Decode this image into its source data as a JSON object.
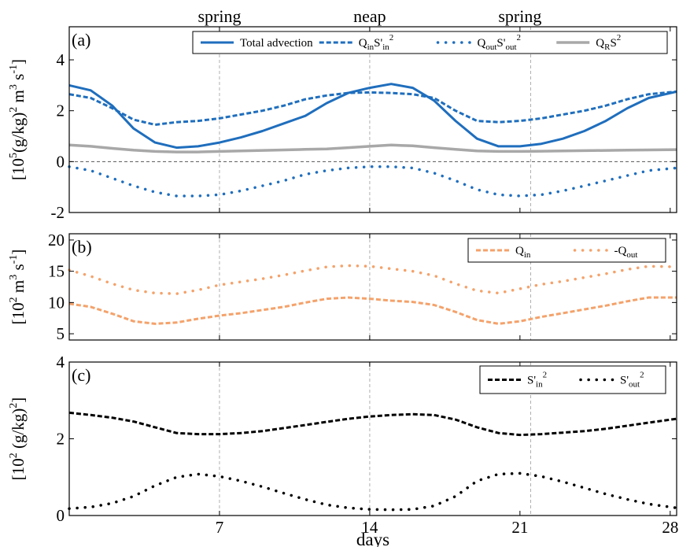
{
  "figure": {
    "phase_labels": [
      {
        "text": "spring",
        "day": 7
      },
      {
        "text": "neap",
        "day": 14
      },
      {
        "text": "spring",
        "day": 21
      }
    ],
    "xlabel": "days",
    "x_ticks": [
      7,
      14,
      21,
      28
    ],
    "x_range": [
      0,
      28.3
    ],
    "vlines_days": [
      7,
      14,
      21.5
    ]
  },
  "chart_data": [
    {
      "panel": "(a)",
      "type": "line",
      "ylabel_html": "[10<tspan dy='-9' font-size='14'>5</tspan><tspan dy='9'>(g/kg)</tspan><tspan dy='-9' font-size='14'>2</tspan><tspan dy='9'> m</tspan><tspan dy='-9' font-size='14'>3</tspan><tspan dy='9'> s</tspan><tspan dy='-9' font-size='14'>-1</tspan><tspan dy='9'>]</tspan>",
      "ylim": [
        -2,
        5.3
      ],
      "y_ticks": [
        -2,
        0,
        2,
        4
      ],
      "zero_line": true,
      "x": [
        0,
        1,
        2,
        3,
        4,
        5,
        6,
        7,
        8,
        9,
        10,
        11,
        12,
        13,
        14,
        15,
        16,
        17,
        18,
        19,
        20,
        21,
        22,
        23,
        24,
        25,
        26,
        27,
        28.3
      ],
      "series": [
        {
          "name": "Total advection",
          "color": "#1f6ebd",
          "style": "solid",
          "width": 3,
          "values": [
            3.0,
            2.8,
            2.2,
            1.3,
            0.75,
            0.55,
            0.6,
            0.75,
            0.95,
            1.2,
            1.5,
            1.8,
            2.3,
            2.7,
            2.9,
            3.05,
            2.9,
            2.4,
            1.6,
            0.9,
            0.6,
            0.6,
            0.7,
            0.9,
            1.2,
            1.6,
            2.1,
            2.5,
            2.75
          ]
        },
        {
          "name": "Q_inS'_in^2",
          "color": "#1f6ebd",
          "style": "dashed",
          "width": 3,
          "values": [
            2.65,
            2.5,
            2.1,
            1.65,
            1.45,
            1.55,
            1.6,
            1.7,
            1.85,
            2.0,
            2.2,
            2.45,
            2.6,
            2.7,
            2.72,
            2.7,
            2.65,
            2.5,
            2.0,
            1.6,
            1.55,
            1.6,
            1.7,
            1.85,
            2.0,
            2.2,
            2.45,
            2.65,
            2.75
          ]
        },
        {
          "name": "Q_outS'_out^2",
          "color": "#1f6ebd",
          "style": "dotted",
          "width": 3.5,
          "values": [
            -0.2,
            -0.35,
            -0.65,
            -0.95,
            -1.2,
            -1.35,
            -1.35,
            -1.3,
            -1.15,
            -0.95,
            -0.75,
            -0.5,
            -0.35,
            -0.25,
            -0.2,
            -0.2,
            -0.25,
            -0.45,
            -0.75,
            -1.1,
            -1.3,
            -1.35,
            -1.3,
            -1.15,
            -0.95,
            -0.75,
            -0.55,
            -0.35,
            -0.25
          ]
        },
        {
          "name": "Q_R S^2",
          "color": "#a8a8a8",
          "style": "solid",
          "width": 3.5,
          "values": [
            0.65,
            0.6,
            0.52,
            0.45,
            0.4,
            0.38,
            0.38,
            0.4,
            0.42,
            0.44,
            0.46,
            0.48,
            0.5,
            0.55,
            0.6,
            0.65,
            0.62,
            0.55,
            0.48,
            0.42,
            0.4,
            0.4,
            0.41,
            0.42,
            0.43,
            0.44,
            0.45,
            0.46,
            0.47
          ]
        }
      ],
      "legend": [
        {
          "series": 0,
          "html": "Total advection"
        },
        {
          "series": 1,
          "html": "Q<tspan font-size='11' dy='4'>in</tspan><tspan dy='-4'>S'</tspan><tspan font-size='11' dy='4'>in</tspan><tspan font-size='11' dy='-12'>2</tspan>"
        },
        {
          "series": 2,
          "html": "Q<tspan font-size='11' dy='4'>out</tspan><tspan dy='-4'>S'</tspan><tspan font-size='11' dy='4'>out</tspan><tspan font-size='11' dy='-12'>2</tspan>"
        },
        {
          "series": 3,
          "html": "Q<tspan font-size='11' dy='4'>R</tspan><tspan dy='-4'>S</tspan><tspan font-size='11' dy='-8'>2</tspan>"
        }
      ]
    },
    {
      "panel": "(b)",
      "type": "line",
      "ylabel_html": "[10<tspan dy='-9' font-size='14'>2</tspan><tspan dy='9'> m</tspan><tspan dy='-9' font-size='14'>3</tspan><tspan dy='9'> s</tspan><tspan dy='-9' font-size='14'>-1</tspan><tspan dy='9'>]</tspan>",
      "ylim": [
        4,
        21
      ],
      "y_ticks": [
        5,
        10,
        15,
        20
      ],
      "zero_line": false,
      "x": [
        0,
        1,
        2,
        3,
        4,
        5,
        6,
        7,
        8,
        9,
        10,
        11,
        12,
        13,
        14,
        15,
        16,
        17,
        18,
        19,
        20,
        21,
        22,
        23,
        24,
        25,
        26,
        27,
        28.3
      ],
      "series": [
        {
          "name": "Q_in",
          "color": "#f4a26b",
          "style": "dashed",
          "width": 3,
          "values": [
            9.8,
            9.3,
            8.2,
            7.0,
            6.6,
            6.8,
            7.4,
            7.9,
            8.3,
            8.8,
            9.3,
            10.0,
            10.6,
            10.8,
            10.6,
            10.3,
            10.1,
            9.6,
            8.5,
            7.2,
            6.6,
            7.0,
            7.7,
            8.3,
            8.9,
            9.5,
            10.2,
            10.8,
            10.8
          ]
        },
        {
          "name": "-Q_out",
          "color": "#f4a26b",
          "style": "dotted",
          "width": 3.5,
          "values": [
            15.2,
            14.2,
            13.0,
            12.0,
            11.5,
            11.4,
            12.0,
            12.8,
            13.3,
            13.8,
            14.4,
            15.1,
            15.7,
            15.9,
            15.8,
            15.4,
            15.0,
            14.3,
            13.0,
            11.9,
            11.5,
            12.2,
            12.9,
            13.4,
            14.0,
            14.6,
            15.3,
            15.8,
            15.7
          ]
        }
      ],
      "legend": [
        {
          "series": 0,
          "html": "Q<tspan font-size='11' dy='4'>in</tspan>"
        },
        {
          "series": 1,
          "html": "-Q<tspan font-size='11' dy='4'>out</tspan>"
        }
      ]
    },
    {
      "panel": "(c)",
      "type": "line",
      "ylabel_html": "[10<tspan dy='-9' font-size='14'>2</tspan><tspan dy='9'> (g/kg)</tspan><tspan dy='-9' font-size='14'>2</tspan><tspan dy='9'>]</tspan>",
      "ylim": [
        0,
        4
      ],
      "y_ticks": [
        0,
        2,
        4
      ],
      "zero_line": false,
      "x": [
        0,
        1,
        2,
        3,
        4,
        5,
        6,
        7,
        8,
        9,
        10,
        11,
        12,
        13,
        14,
        15,
        16,
        17,
        18,
        19,
        20,
        21,
        22,
        23,
        24,
        25,
        26,
        27,
        28.3
      ],
      "series": [
        {
          "name": "S'_in^2",
          "color": "#000000",
          "style": "dashed",
          "width": 3,
          "values": [
            2.68,
            2.62,
            2.55,
            2.45,
            2.3,
            2.15,
            2.12,
            2.12,
            2.15,
            2.2,
            2.28,
            2.36,
            2.44,
            2.52,
            2.58,
            2.62,
            2.64,
            2.62,
            2.5,
            2.3,
            2.15,
            2.1,
            2.12,
            2.16,
            2.2,
            2.26,
            2.34,
            2.42,
            2.52
          ]
        },
        {
          "name": "S'_out^2",
          "color": "#000000",
          "style": "dotted",
          "width": 3.5,
          "values": [
            0.18,
            0.22,
            0.32,
            0.5,
            0.78,
            1.0,
            1.08,
            1.02,
            0.9,
            0.75,
            0.58,
            0.42,
            0.28,
            0.2,
            0.16,
            0.15,
            0.16,
            0.25,
            0.5,
            0.9,
            1.08,
            1.1,
            1.02,
            0.88,
            0.72,
            0.56,
            0.42,
            0.3,
            0.2
          ]
        }
      ],
      "legend": [
        {
          "series": 0,
          "html": "S'<tspan font-size='11' dy='4'>in</tspan><tspan font-size='11' dy='-12'>2</tspan>"
        },
        {
          "series": 1,
          "html": "S'<tspan font-size='11' dy='4'>out</tspan><tspan font-size='11' dy='-12'>2</tspan>"
        }
      ]
    }
  ]
}
